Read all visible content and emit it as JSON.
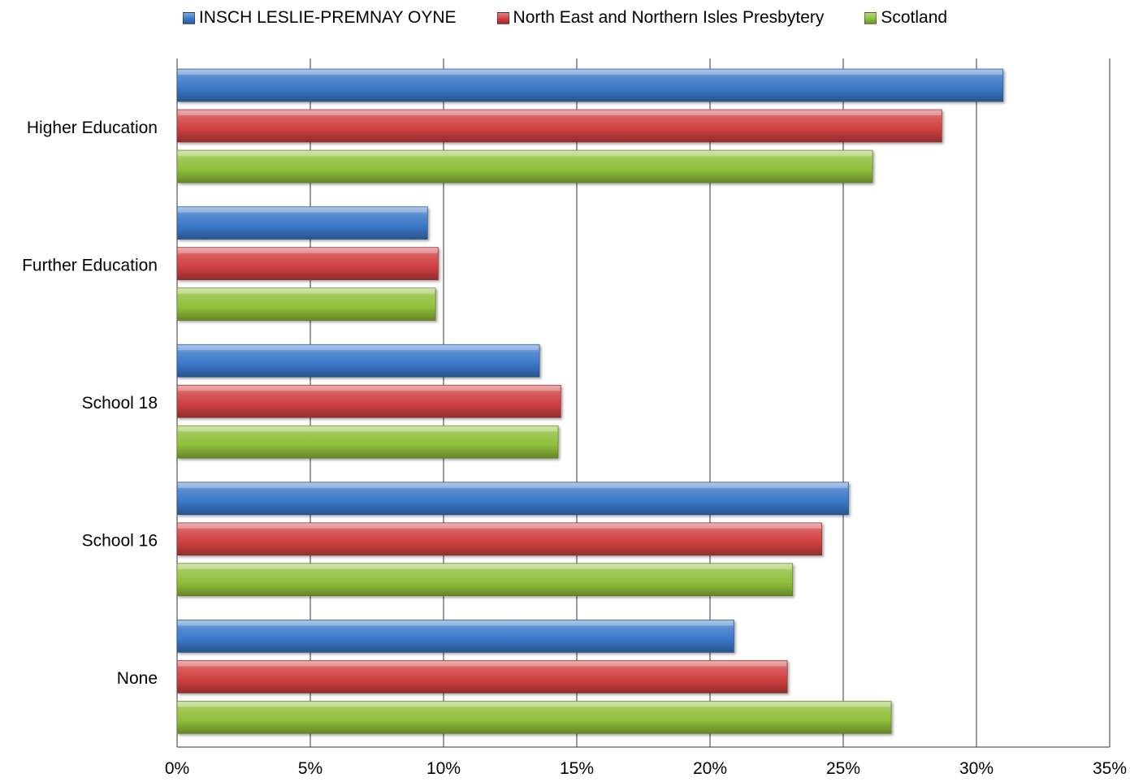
{
  "chart_data": {
    "type": "bar",
    "orientation": "horizontal",
    "categories": [
      "Higher Education",
      "Further Education",
      "School 18",
      "School 16",
      "None"
    ],
    "series": [
      {
        "name": "INSCH LESLIE-PREMNAY OYNE",
        "color": "#3a78c8",
        "values": [
          31.0,
          9.4,
          13.6,
          25.2,
          20.9
        ]
      },
      {
        "name": "North East and Northern Isles Presbytery",
        "color": "#d04040",
        "values": [
          28.7,
          9.8,
          14.4,
          24.2,
          22.9
        ]
      },
      {
        "name": "Scotland",
        "color": "#8fbf3a",
        "values": [
          26.1,
          9.7,
          14.3,
          23.1,
          26.8
        ]
      }
    ],
    "xlim": [
      0,
      35
    ],
    "xticks": [
      0,
      5,
      10,
      15,
      20,
      25,
      30,
      35
    ],
    "tick_suffix": "%",
    "grid": true,
    "legend_position": "top"
  }
}
